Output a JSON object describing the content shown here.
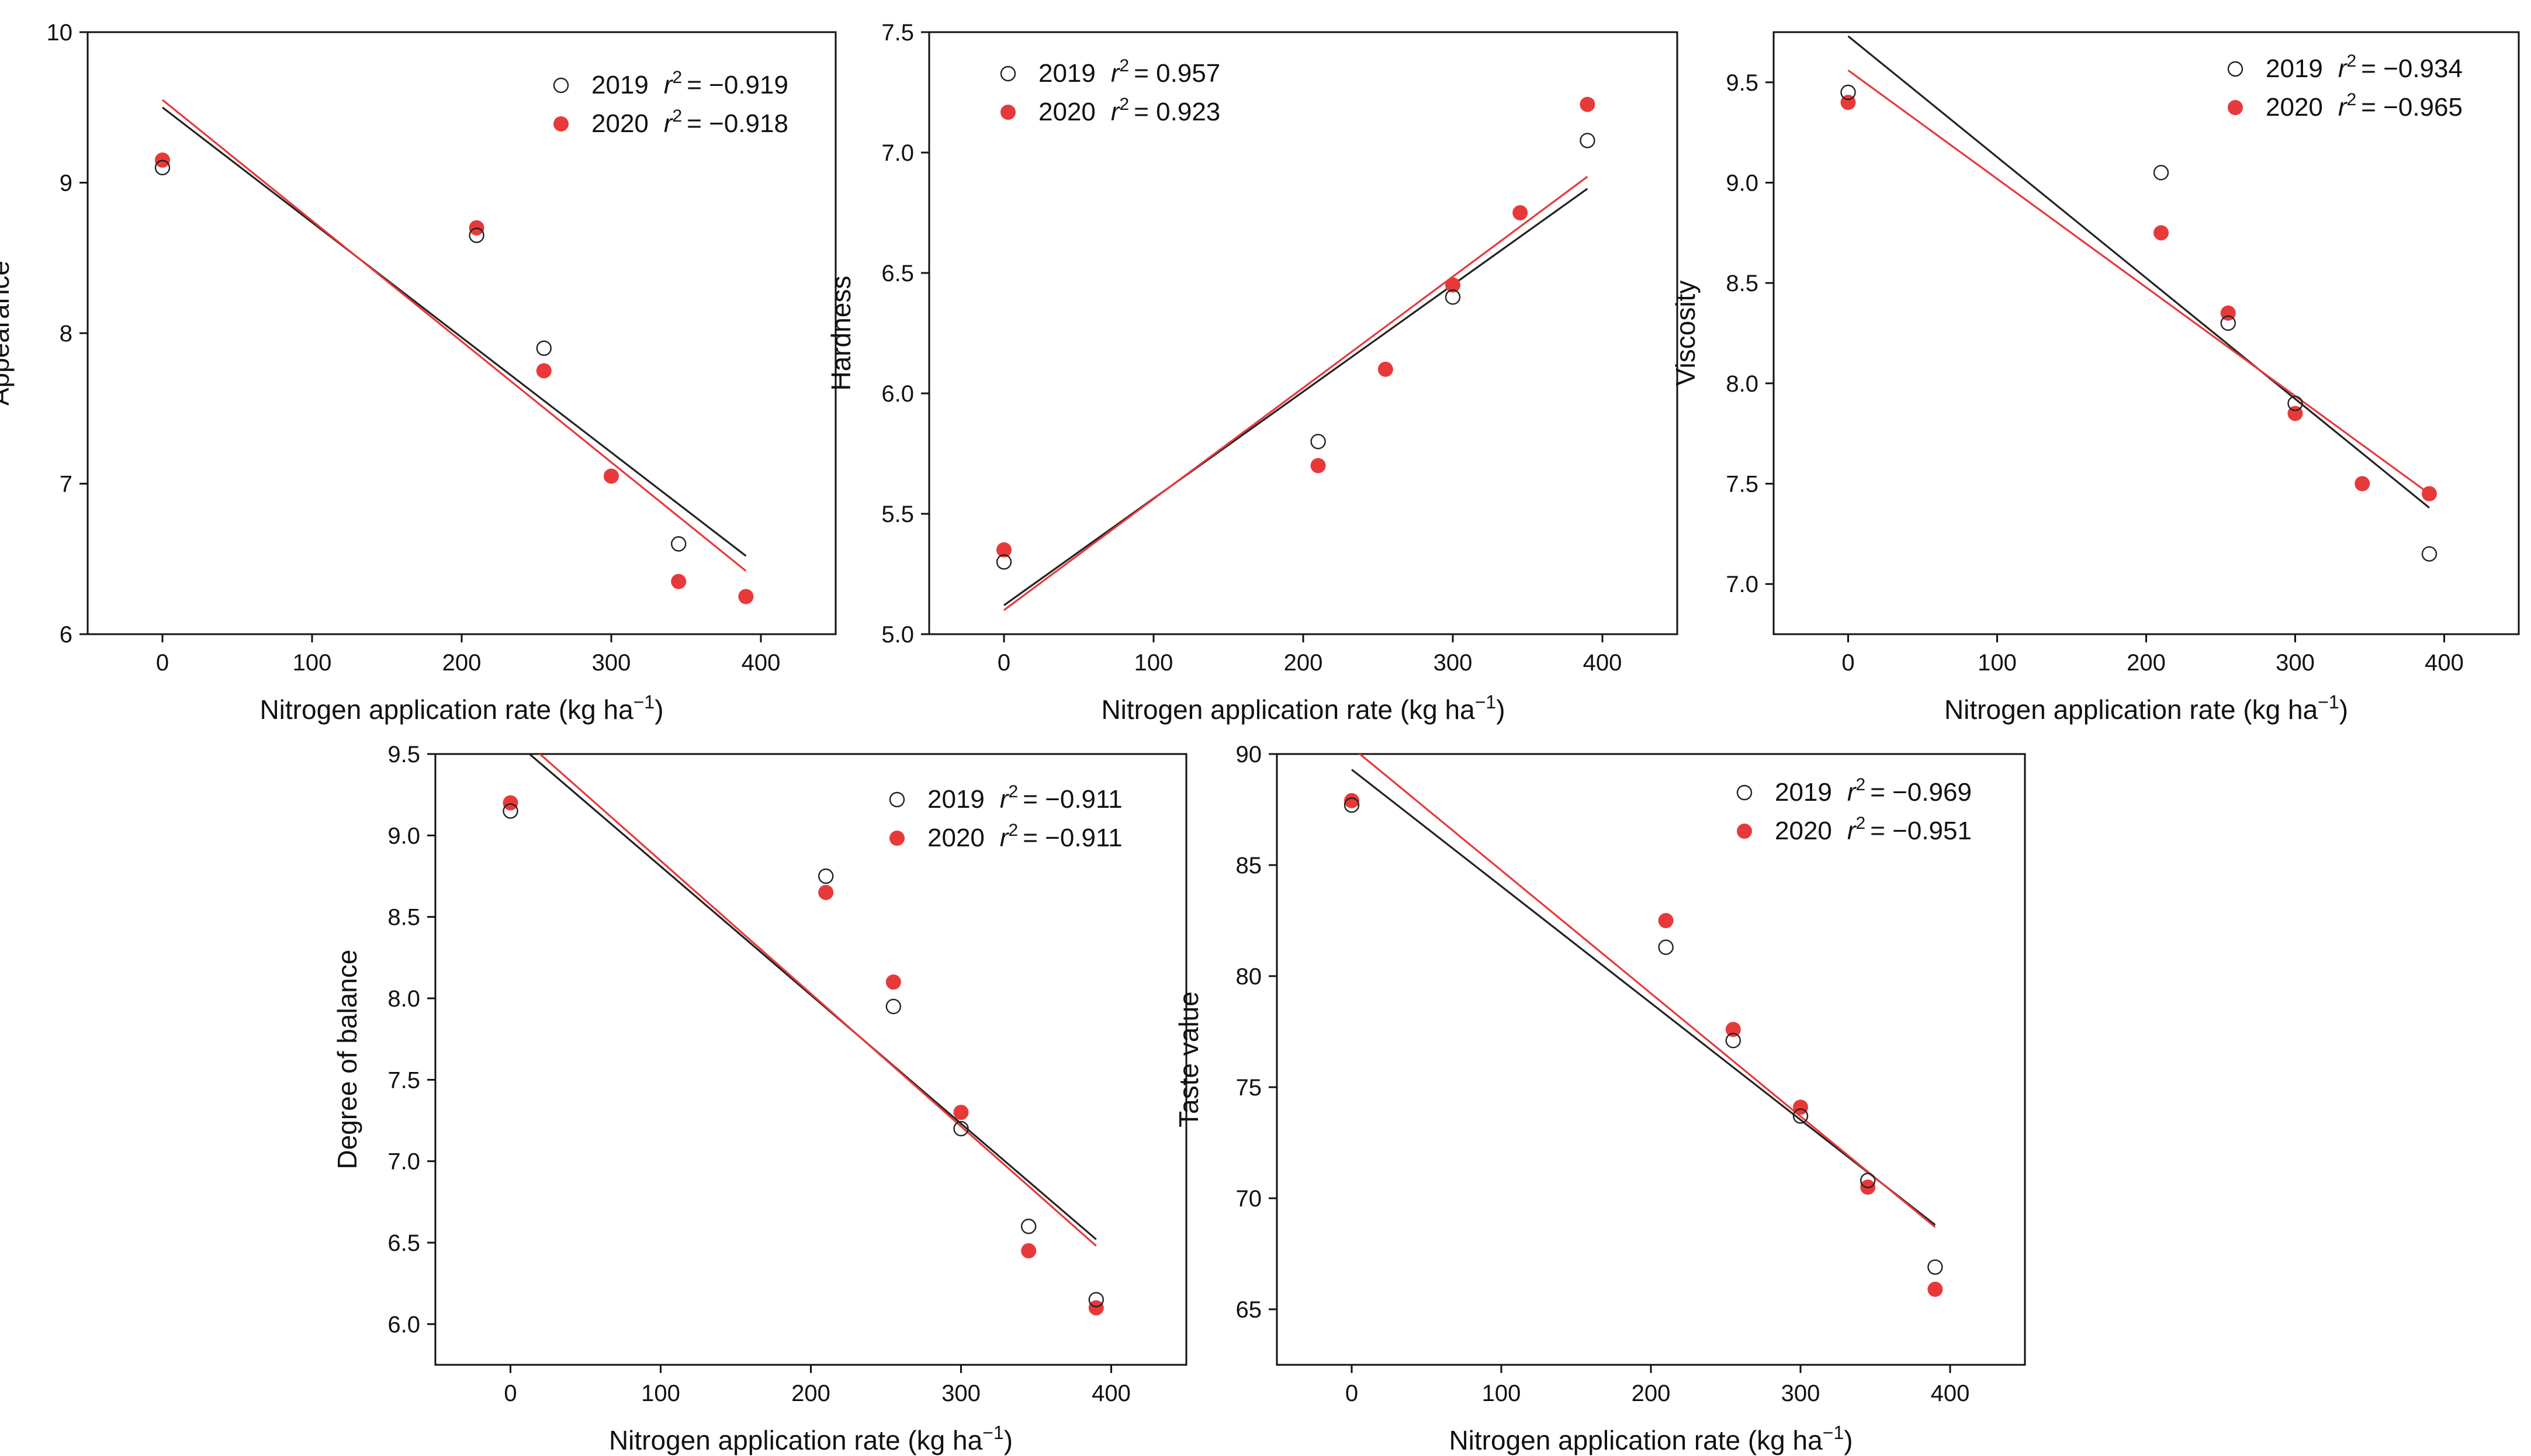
{
  "chart_data": [
    {
      "type": "scatter",
      "ylabel": "Appearance",
      "xlabel": "Nitrogen application rate (kg ha",
      "xlabel_sup": "−1",
      "xlabel_end": ")",
      "xlim": [
        -50,
        450
      ],
      "ylim": [
        6,
        10
      ],
      "xticks": [
        0,
        100,
        200,
        300,
        400
      ],
      "yticks": [
        6,
        7,
        8,
        9,
        10
      ],
      "ytick_labels": [
        "6",
        "7",
        "8",
        "9",
        "10"
      ],
      "legend_position": "top-right",
      "series": [
        {
          "name": "2019",
          "r2_symbol": "r",
          "r2_exp": "2",
          "r2_text": "= −0.919",
          "marker": "open-circle",
          "color": "#222222",
          "x": [
            0,
            210,
            255,
            345
          ],
          "y": [
            9.1,
            8.65,
            7.9,
            6.6
          ],
          "fit": {
            "x": [
              0,
              390
            ],
            "y": [
              9.5,
              6.52
            ]
          }
        },
        {
          "name": "2020",
          "r2_symbol": "r",
          "r2_exp": "2",
          "r2_text": "= −0.918",
          "marker": "filled-circle",
          "color": "#e8393a",
          "x": [
            0,
            210,
            255,
            300,
            345,
            390
          ],
          "y": [
            9.15,
            8.7,
            7.75,
            7.05,
            6.35,
            6.25
          ],
          "fit": {
            "x": [
              0,
              390
            ],
            "y": [
              9.55,
              6.42
            ]
          }
        }
      ]
    },
    {
      "type": "scatter",
      "ylabel": "Hardness",
      "xlabel": "Nitrogen application rate (kg ha",
      "xlabel_sup": "−1",
      "xlabel_end": ")",
      "xlim": [
        -50,
        450
      ],
      "ylim": [
        5.0,
        7.5
      ],
      "xticks": [
        0,
        100,
        200,
        300,
        400
      ],
      "yticks": [
        5.0,
        5.5,
        6.0,
        6.5,
        7.0,
        7.5
      ],
      "ytick_labels": [
        "5.0",
        "5.5",
        "6.0",
        "6.5",
        "7.0",
        "7.5"
      ],
      "legend_position": "top-left",
      "series": [
        {
          "name": "2019",
          "r2_symbol": "r",
          "r2_exp": "2",
          "r2_text": "= 0.957",
          "marker": "open-circle",
          "color": "#222222",
          "x": [
            0,
            210,
            300,
            390
          ],
          "y": [
            5.3,
            5.8,
            6.4,
            7.05
          ],
          "fit": {
            "x": [
              0,
              390
            ],
            "y": [
              5.12,
              6.85
            ]
          }
        },
        {
          "name": "2020",
          "r2_symbol": "r",
          "r2_exp": "2",
          "r2_text": "= 0.923",
          "marker": "filled-circle",
          "color": "#e8393a",
          "x": [
            0,
            210,
            255,
            300,
            345,
            390
          ],
          "y": [
            5.35,
            5.7,
            6.1,
            6.45,
            6.75,
            7.2
          ],
          "fit": {
            "x": [
              0,
              390
            ],
            "y": [
              5.1,
              6.9
            ]
          }
        }
      ]
    },
    {
      "type": "scatter",
      "ylabel": "Viscosity",
      "xlabel": "Nitrogen application rate (kg ha",
      "xlabel_sup": "−1",
      "xlabel_end": ")",
      "xlim": [
        -50,
        450
      ],
      "ylim": [
        6.75,
        9.75
      ],
      "xticks": [
        0,
        100,
        200,
        300,
        400
      ],
      "yticks": [
        7.0,
        7.5,
        8.0,
        8.5,
        9.0,
        9.5
      ],
      "ytick_labels": [
        "7.0",
        "7.5",
        "8.0",
        "8.5",
        "9.0",
        "9.5"
      ],
      "legend_position": "top-right",
      "series": [
        {
          "name": "2019",
          "r2_symbol": "r",
          "r2_exp": "2",
          "r2_text": "= −0.934",
          "marker": "open-circle",
          "color": "#222222",
          "x": [
            0,
            210,
            255,
            300,
            390
          ],
          "y": [
            9.45,
            9.05,
            8.3,
            7.9,
            7.15
          ],
          "fit": {
            "x": [
              0,
              390
            ],
            "y": [
              9.73,
              7.38
            ]
          }
        },
        {
          "name": "2020",
          "r2_symbol": "r",
          "r2_exp": "2",
          "r2_text": "= −0.965",
          "marker": "filled-circle",
          "color": "#e8393a",
          "x": [
            0,
            210,
            255,
            300,
            345,
            390
          ],
          "y": [
            9.4,
            8.75,
            8.35,
            7.85,
            7.5,
            7.45
          ],
          "fit": {
            "x": [
              0,
              390
            ],
            "y": [
              9.56,
              7.45
            ]
          }
        }
      ]
    },
    {
      "type": "scatter",
      "ylabel": "Degree of balance",
      "xlabel": "Nitrogen application rate (kg ha",
      "xlabel_sup": "−1",
      "xlabel_end": ")",
      "xlim": [
        -50,
        450
      ],
      "ylim": [
        5.75,
        9.5
      ],
      "xticks": [
        0,
        100,
        200,
        300,
        400
      ],
      "yticks": [
        6.0,
        6.5,
        7.0,
        7.5,
        8.0,
        8.5,
        9.0,
        9.5
      ],
      "ytick_labels": [
        "6.0",
        "6.5",
        "7.0",
        "7.5",
        "8.0",
        "8.5",
        "9.0",
        "9.5"
      ],
      "legend_position": "top-right",
      "series": [
        {
          "name": "2019",
          "r2_symbol": "r",
          "r2_exp": "2",
          "r2_text": "= −0.911",
          "marker": "open-circle",
          "color": "#222222",
          "x": [
            0,
            210,
            255,
            300,
            345,
            390
          ],
          "y": [
            9.15,
            8.75,
            7.95,
            7.2,
            6.6,
            6.15
          ],
          "fit": {
            "x": [
              0,
              390
            ],
            "y": [
              9.6,
              6.52
            ]
          }
        },
        {
          "name": "2020",
          "r2_symbol": "r",
          "r2_exp": "2",
          "r2_text": "= −0.911",
          "marker": "filled-circle",
          "color": "#e8393a",
          "x": [
            0,
            210,
            255,
            300,
            345,
            390
          ],
          "y": [
            9.2,
            8.65,
            8.1,
            7.3,
            6.45,
            6.1
          ],
          "fit": {
            "x": [
              0,
              390
            ],
            "y": [
              9.66,
              6.48
            ]
          }
        }
      ]
    },
    {
      "type": "scatter",
      "ylabel": "Taste value",
      "xlabel": "Nitrogen application rate (kg ha",
      "xlabel_sup": "−1",
      "xlabel_end": ")",
      "xlim": [
        -50,
        450
      ],
      "ylim": [
        62.5,
        90
      ],
      "xticks": [
        0,
        100,
        200,
        300,
        400
      ],
      "yticks": [
        65,
        70,
        75,
        80,
        85,
        90
      ],
      "ytick_labels": [
        "65",
        "70",
        "75",
        "80",
        "85",
        "90"
      ],
      "legend_position": "top-right",
      "series": [
        {
          "name": "2019",
          "r2_symbol": "r",
          "r2_exp": "2",
          "r2_text": "= −0.969",
          "marker": "open-circle",
          "color": "#222222",
          "x": [
            0,
            210,
            255,
            300,
            345,
            390
          ],
          "y": [
            87.7,
            81.3,
            77.1,
            73.7,
            70.8,
            66.9
          ],
          "fit": {
            "x": [
              0,
              390
            ],
            "y": [
              89.3,
              68.8
            ]
          }
        },
        {
          "name": "2020",
          "r2_symbol": "r",
          "r2_exp": "2",
          "r2_text": "= −0.951",
          "marker": "filled-circle",
          "color": "#e8393a",
          "x": [
            0,
            210,
            255,
            300,
            345,
            390
          ],
          "y": [
            87.9,
            82.5,
            77.6,
            74.1,
            70.5,
            65.9
          ],
          "fit": {
            "x": [
              0,
              390
            ],
            "y": [
              90.3,
              68.7
            ]
          }
        }
      ]
    }
  ]
}
